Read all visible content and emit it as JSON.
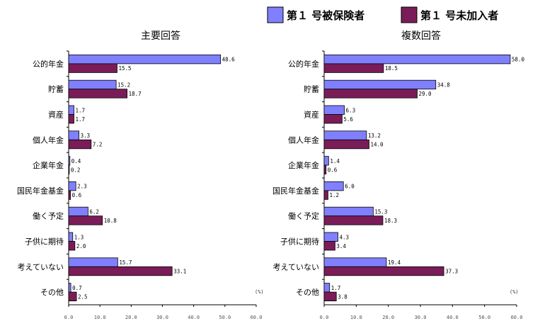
{
  "legend": [
    {
      "label": "第１ 号被保険者",
      "color": "#8080ff"
    },
    {
      "label": "第１ 号未加入者",
      "color": "#7a1c58"
    }
  ],
  "unit_label": "(%)",
  "chart_data": [
    {
      "type": "bar",
      "orientation": "horizontal",
      "title": "主要回答",
      "categories": [
        "公的年金",
        "貯蓄",
        "資産",
        "個人年金",
        "企業年金",
        "国民年金基金",
        "働く予定",
        "子供に期待",
        "考えていない",
        "その他"
      ],
      "series": [
        {
          "name": "第１ 号被保険者",
          "values": [
            48.6,
            15.2,
            1.7,
            3.3,
            0.4,
            2.3,
            6.2,
            1.3,
            15.7,
            0.7
          ],
          "labels": [
            "48.6",
            "15.2",
            "1.7",
            "3.3",
            "0.4",
            "2.3",
            "6.2",
            "1.3",
            "15.7",
            "0.7"
          ]
        },
        {
          "name": "第１ 号未加入者",
          "values": [
            15.5,
            18.7,
            1.7,
            7.2,
            0.2,
            0.6,
            10.8,
            2.0,
            33.1,
            2.5
          ],
          "labels": [
            "15.5",
            "18.7",
            "1.7",
            "7.2",
            "0.2",
            "0.6",
            "10.8",
            "2.0",
            "33.1",
            "2.5"
          ]
        }
      ],
      "xlim": [
        0,
        60
      ],
      "ticks": [
        "0.0",
        "10.0",
        "20.0",
        "30.0",
        "40.0",
        "50.0",
        "60.0"
      ]
    },
    {
      "type": "bar",
      "orientation": "horizontal",
      "title": "複数回答",
      "categories": [
        "公的年金",
        "貯蓄",
        "資産",
        "個人年金",
        "企業年金",
        "国民年金基金",
        "働く予定",
        "子供に期待",
        "考えていない",
        "その他"
      ],
      "series": [
        {
          "name": "第１ 号被保険者",
          "values": [
            58.0,
            34.8,
            6.3,
            13.2,
            1.4,
            6.0,
            15.3,
            4.3,
            19.4,
            1.7
          ],
          "labels": [
            "58.0",
            "34.8",
            "6.3",
            "13.2",
            "1.4",
            "6.0",
            "15.3",
            "4.3",
            "19.4",
            "1.7"
          ]
        },
        {
          "name": "第１ 号未加入者",
          "values": [
            18.5,
            29.0,
            5.6,
            14.0,
            0.6,
            1.2,
            18.3,
            3.4,
            37.3,
            3.8
          ],
          "labels": [
            "18.5",
            "29.0",
            "5.6",
            "14.0",
            "0.6",
            "1.2",
            "18.3",
            "3.4",
            "37.3",
            "3.8"
          ]
        }
      ],
      "xlim": [
        0,
        60
      ],
      "ticks": [
        "0.0",
        "10.0",
        "20.0",
        "30.0",
        "40.0",
        "50.0",
        "60.0"
      ]
    }
  ]
}
